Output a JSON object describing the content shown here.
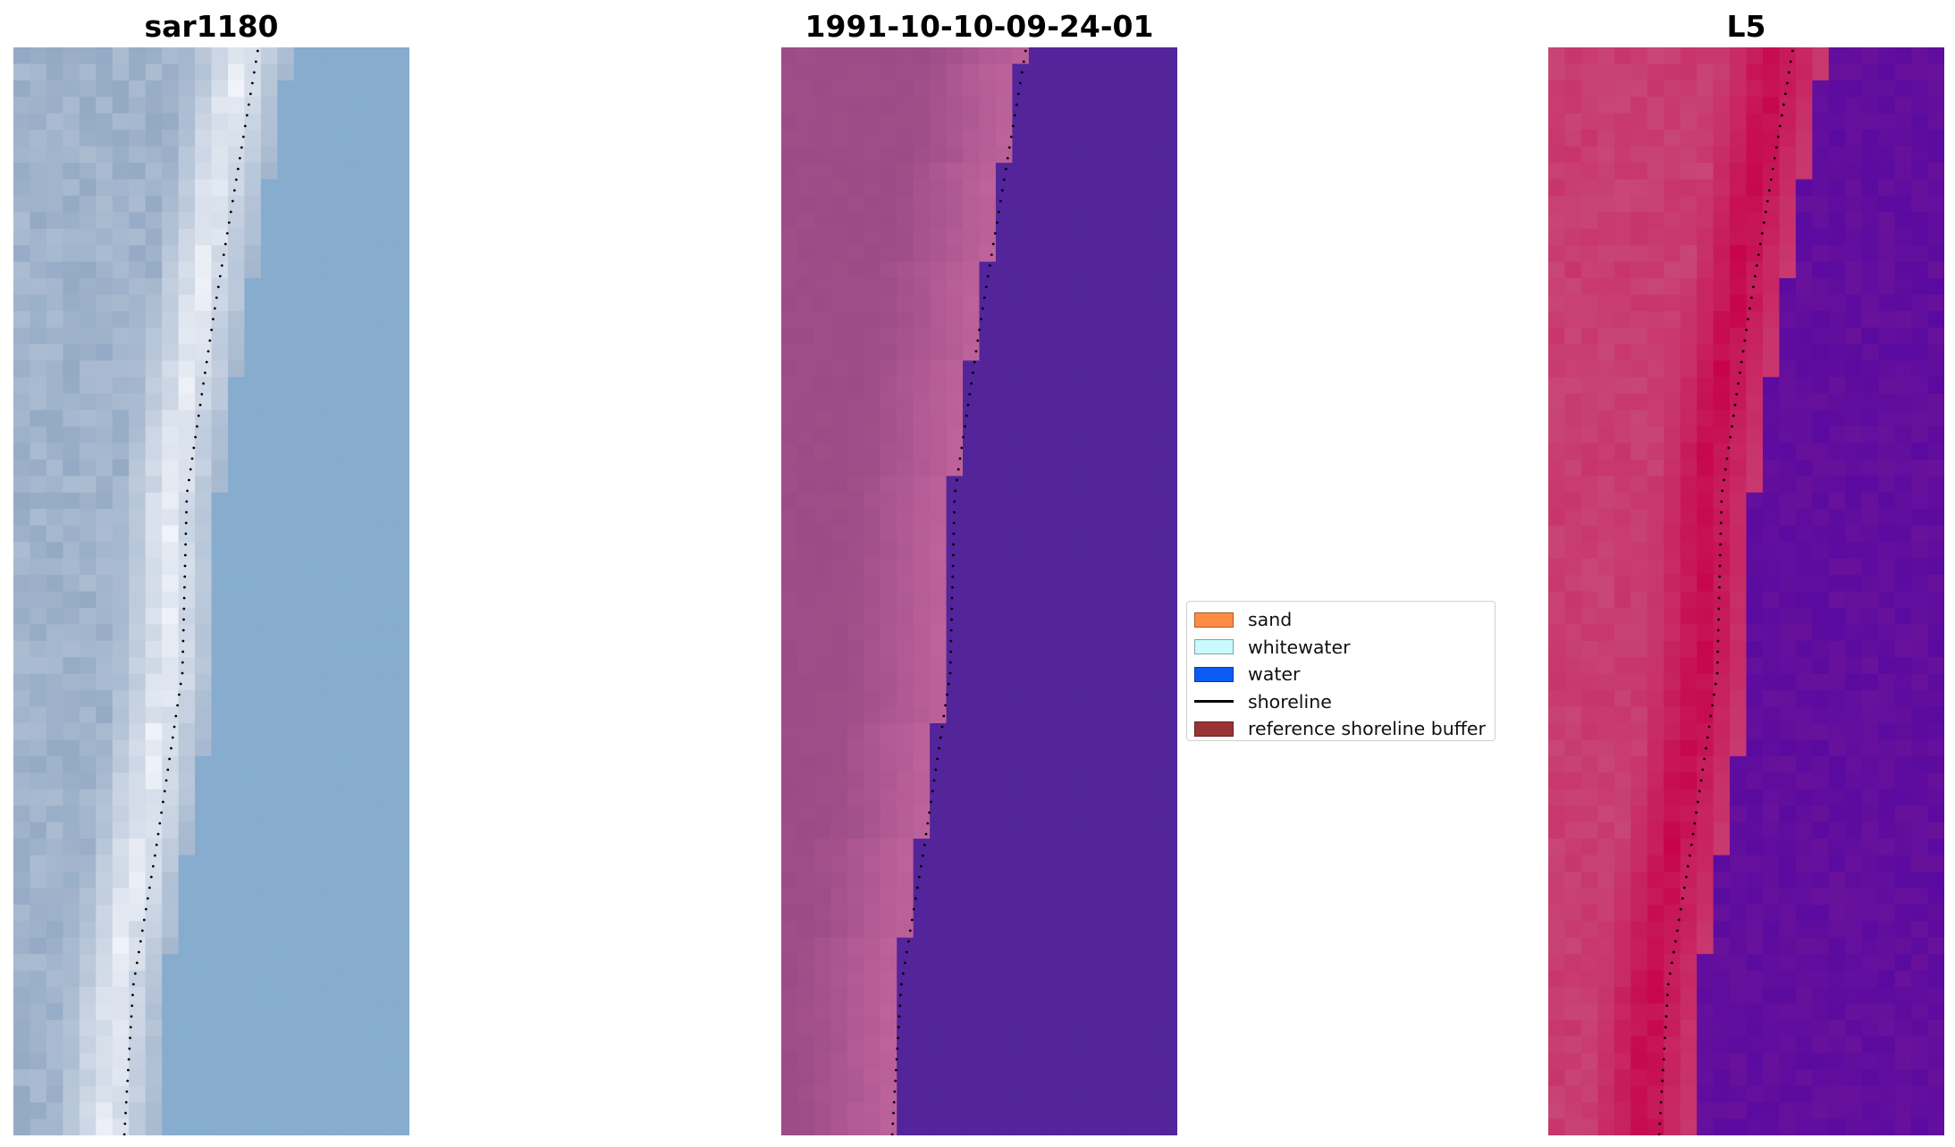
{
  "panels": [
    {
      "title": "sar1180",
      "style": "rgb",
      "colors": {
        "land": "#93a9c4",
        "beach": "#f4f6fb",
        "water": "#86acce"
      },
      "shoreline_color": "#000000"
    },
    {
      "title": "1991-10-10-09-24-01",
      "style": "classified",
      "colors": {
        "land": "#9b4b86",
        "beach": "#c0649c",
        "water": "#53249a"
      },
      "shoreline_color": "#000000"
    },
    {
      "title": "L5",
      "style": "false-color",
      "colors": {
        "land": "#c84678",
        "beach": "#c7004a",
        "water": "#5b0aa0"
      },
      "shoreline_color": "#000000"
    }
  ],
  "legend": {
    "items": [
      {
        "label": "sand",
        "kind": "patch",
        "color": "#ff8c42"
      },
      {
        "label": "whitewater",
        "kind": "patch",
        "color": "#c8fafe"
      },
      {
        "label": "water",
        "kind": "patch",
        "color": "#0a5cf5"
      },
      {
        "label": "shoreline",
        "kind": "line",
        "color": "#000000"
      },
      {
        "label": "reference shoreline buffer",
        "kind": "patch",
        "color": "#9a3434"
      }
    ]
  }
}
